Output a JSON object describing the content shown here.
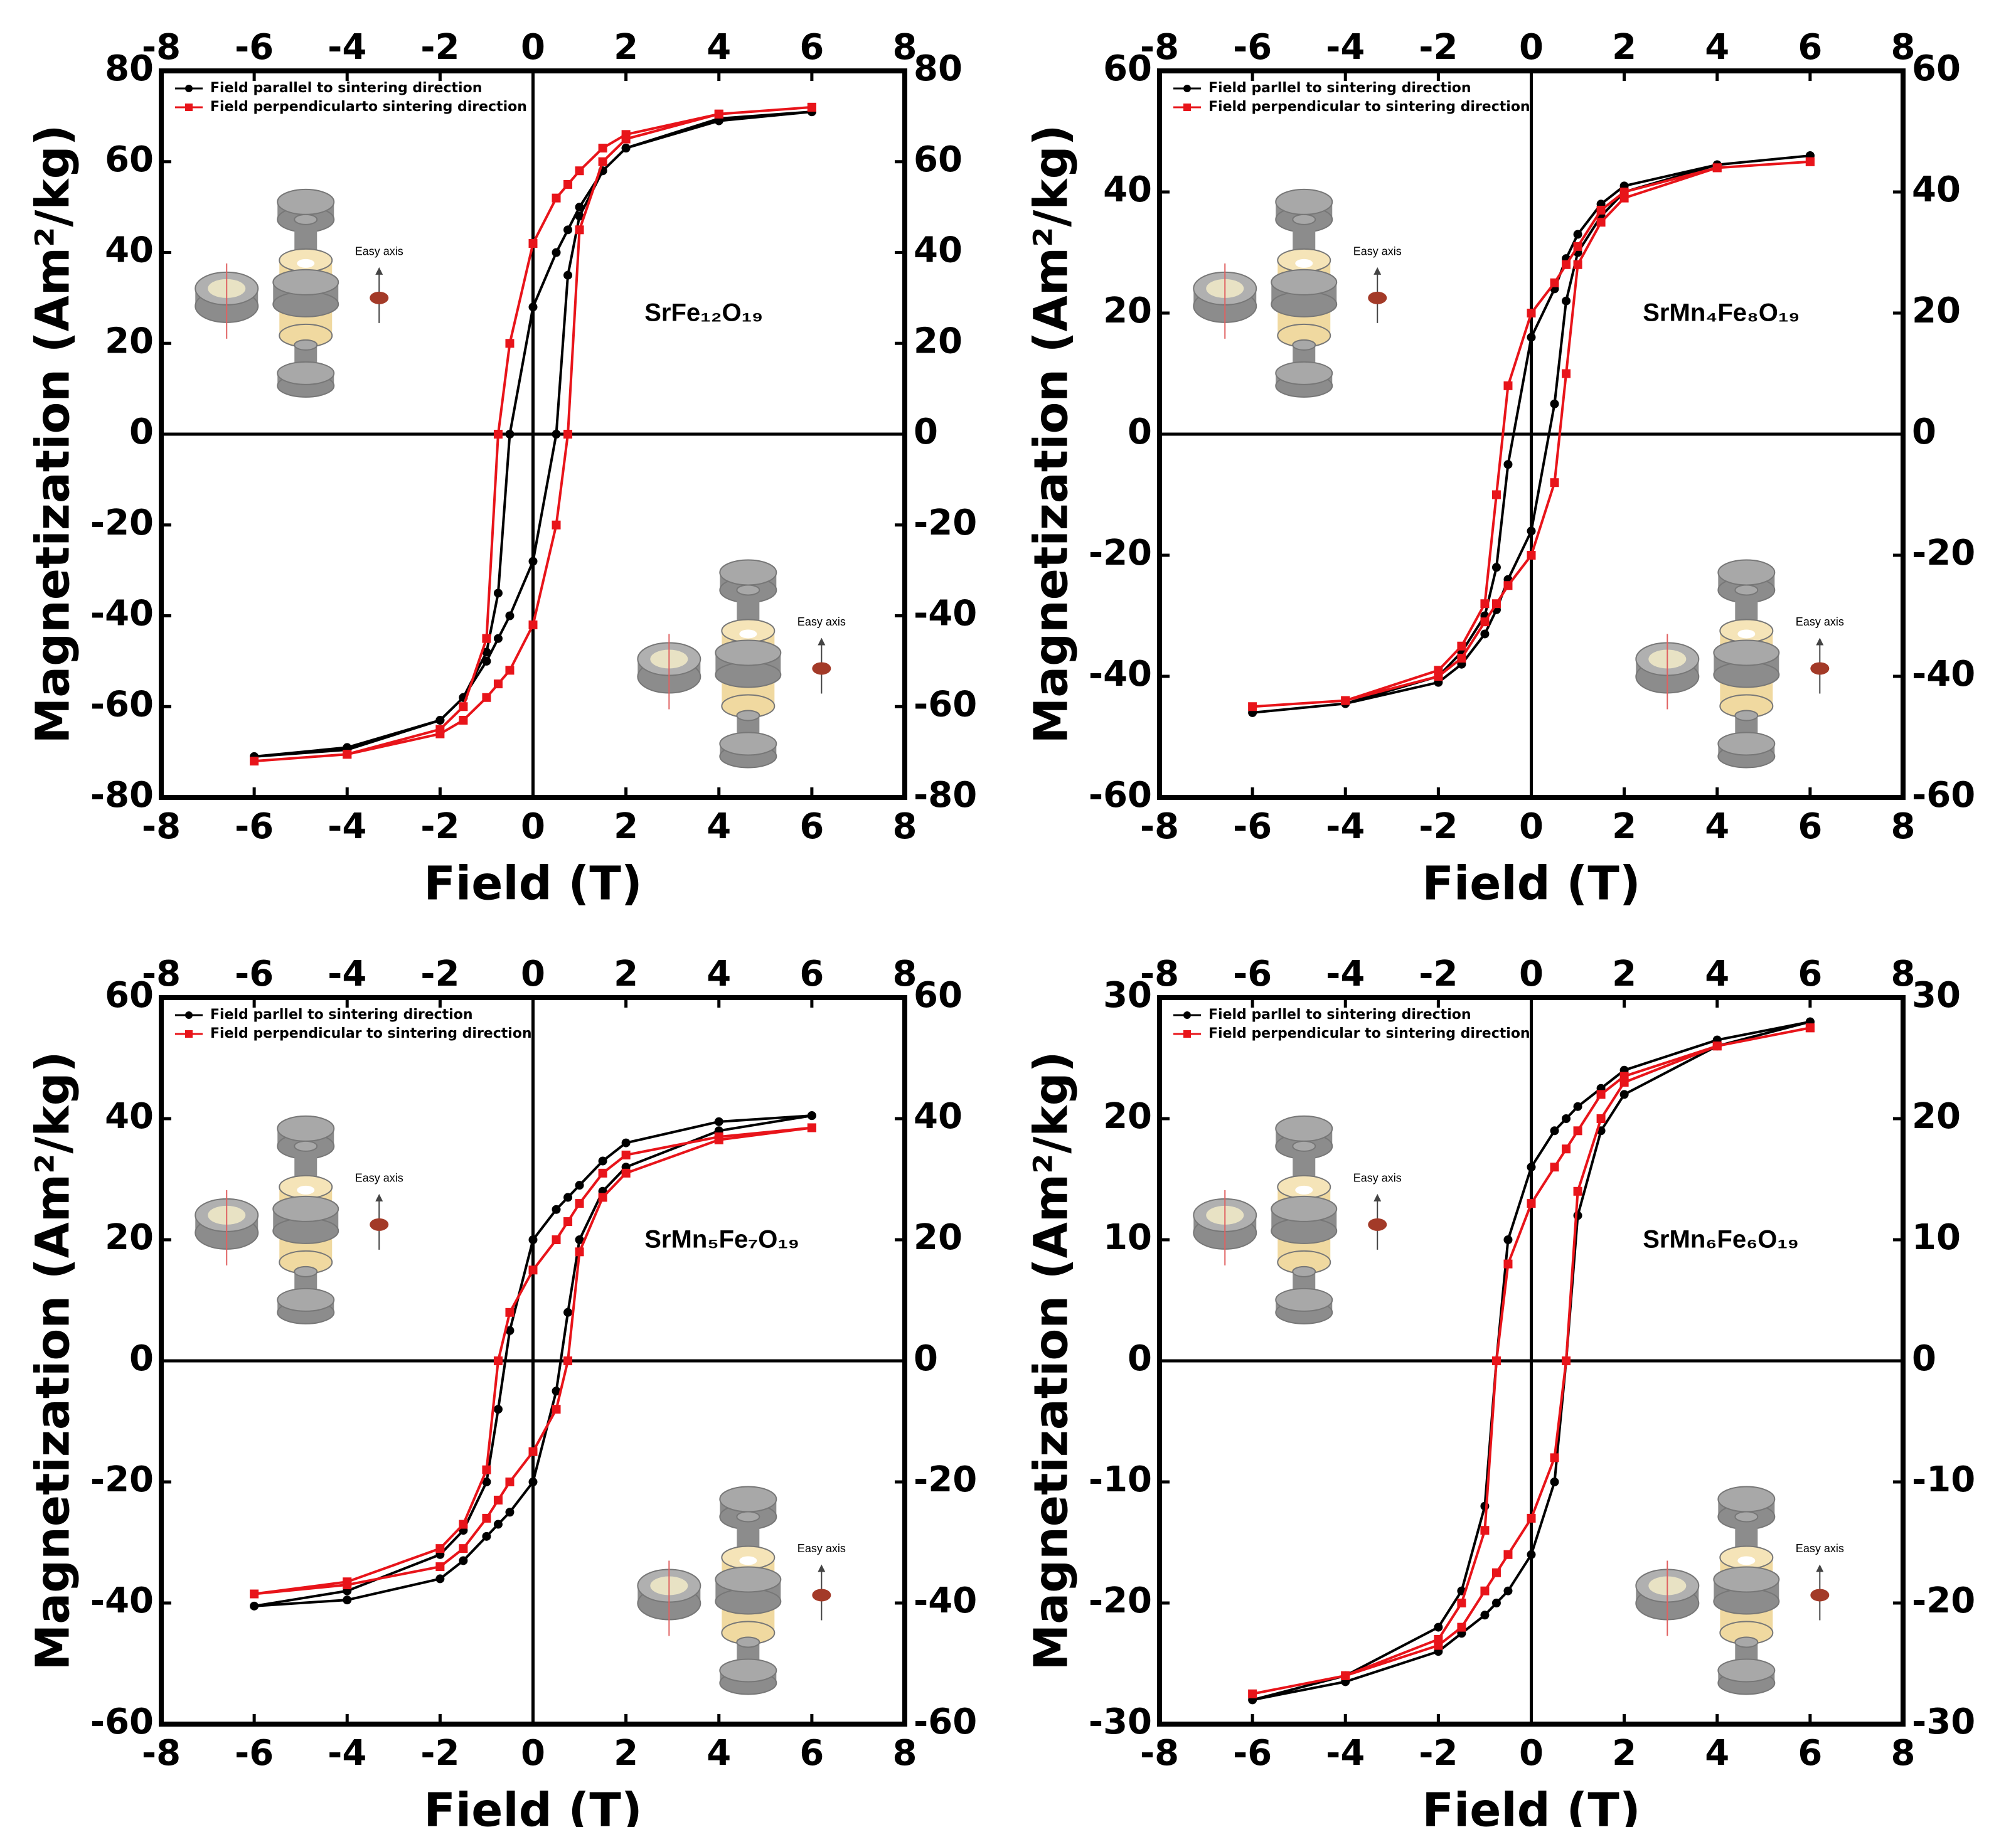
{
  "chart_data": [
    {
      "type": "line",
      "annotation": "SrFe₁₂O₁₉",
      "inset_label": "Easy axis",
      "xlabel": "Field (T)",
      "ylabel": "Magnetization (Am²/kg)",
      "xlim": [
        -8,
        8
      ],
      "xticks": [
        -8,
        -6,
        -4,
        -2,
        0,
        2,
        4,
        6,
        8
      ],
      "ylim": [
        -80,
        80
      ],
      "yticks": [
        -80,
        -60,
        -40,
        -20,
        0,
        20,
        40,
        60,
        80
      ],
      "x": [
        6,
        4,
        2,
        1.5,
        1,
        0.75,
        0.5,
        0,
        -0.5,
        -0.75,
        -1,
        -1.5,
        -2,
        -4,
        -6,
        -4,
        -2,
        -1.5,
        -1,
        -0.75,
        -0.5,
        0,
        0.5,
        0.75,
        1,
        1.5,
        2,
        4,
        6
      ],
      "series": [
        {
          "name": "Field parallel to sintering direction",
          "color": "#000000",
          "marker": "circle",
          "values": [
            71,
            69,
            63,
            58,
            50,
            45,
            40,
            28,
            0,
            -35,
            -48,
            -58,
            -63,
            -69.5,
            -71,
            -69,
            -63,
            -58,
            -50,
            -45,
            -40,
            -28,
            0,
            35,
            48,
            58,
            63,
            69.5,
            71
          ]
        },
        {
          "name": "Field perpendicularto sintering direction",
          "color": "#e8141a",
          "marker": "square",
          "values": [
            72,
            70.5,
            66,
            63,
            58,
            55,
            52,
            42,
            20,
            0,
            -45,
            -60,
            -65,
            -70.5,
            -72,
            -70.5,
            -66,
            -63,
            -58,
            -55,
            -52,
            -42,
            -20,
            0,
            45,
            60,
            65,
            70.5,
            72
          ]
        }
      ]
    },
    {
      "type": "line",
      "annotation": "SrMn₄Fe₈O₁₉",
      "inset_label": "Easy axis",
      "xlabel": "Field (T)",
      "ylabel": "Magnetization (Am²/kg)",
      "xlim": [
        -8,
        8
      ],
      "xticks": [
        -8,
        -6,
        -4,
        -2,
        0,
        2,
        4,
        6,
        8
      ],
      "ylim": [
        -60,
        60
      ],
      "yticks": [
        -60,
        -40,
        -20,
        0,
        20,
        40,
        60
      ],
      "x": [
        6,
        4,
        2,
        1.5,
        1,
        0.75,
        0.5,
        0,
        -0.5,
        -0.75,
        -1,
        -1.5,
        -2,
        -4,
        -6,
        -4,
        -2,
        -1.5,
        -1,
        -0.75,
        -0.5,
        0,
        0.5,
        0.75,
        1,
        1.5,
        2,
        4,
        6
      ],
      "series": [
        {
          "name": "Field parllel to sintering direction",
          "color": "#000000",
          "marker": "circle",
          "values": [
            46,
            44.5,
            41,
            38,
            33,
            29,
            24,
            16,
            -5,
            -22,
            -30,
            -36,
            -40,
            -44.5,
            -46,
            -44.5,
            -41,
            -38,
            -33,
            -29,
            -24,
            -16,
            5,
            22,
            30,
            36,
            40,
            44.5,
            46
          ]
        },
        {
          "name": "Field perpendicular to sintering direction",
          "color": "#e8141a",
          "marker": "square",
          "values": [
            45,
            44,
            40,
            37,
            31,
            28,
            25,
            20,
            8,
            -10,
            -28,
            -35,
            -39,
            -44,
            -45,
            -44,
            -40,
            -37,
            -31,
            -28,
            -25,
            -20,
            -8,
            10,
            28,
            35,
            39,
            44,
            45
          ]
        }
      ]
    },
    {
      "type": "line",
      "annotation": "SrMn₅Fe₇O₁₉",
      "inset_label": "Easy axis",
      "xlabel": "Field (T)",
      "ylabel": "Magnetization (Am²/kg)",
      "xlim": [
        -8,
        8
      ],
      "xticks": [
        -8,
        -6,
        -4,
        -2,
        0,
        2,
        4,
        6,
        8
      ],
      "ylim": [
        -60,
        60
      ],
      "yticks": [
        -60,
        -40,
        -20,
        0,
        20,
        40,
        60
      ],
      "x": [
        6,
        4,
        2,
        1.5,
        1,
        0.75,
        0.5,
        0,
        -0.5,
        -0.75,
        -1,
        -1.5,
        -2,
        -4,
        -6,
        -4,
        -2,
        -1.5,
        -1,
        -0.75,
        -0.5,
        0,
        0.5,
        0.75,
        1,
        1.5,
        2,
        4,
        6
      ],
      "series": [
        {
          "name": "Field parllel to sintering direction",
          "color": "#000000",
          "marker": "circle",
          "values": [
            40.5,
            39.5,
            36,
            33,
            29,
            27,
            25,
            20,
            5,
            -8,
            -20,
            -28,
            -32,
            -38,
            -40.5,
            -39.5,
            -36,
            -33,
            -29,
            -27,
            -25,
            -20,
            -5,
            8,
            20,
            28,
            32,
            38,
            40.5
          ]
        },
        {
          "name": "Field perpendicular to sintering direction",
          "color": "#e8141a",
          "marker": "square",
          "values": [
            38.5,
            37,
            34,
            31,
            26,
            23,
            20,
            15,
            8,
            0,
            -18,
            -27,
            -31,
            -36.5,
            -38.5,
            -37,
            -34,
            -31,
            -26,
            -23,
            -20,
            -15,
            -8,
            0,
            18,
            27,
            31,
            36.5,
            38.5
          ]
        }
      ]
    },
    {
      "type": "line",
      "annotation": "SrMn₆Fe₆O₁₉",
      "inset_label": "Easy axis",
      "xlabel": "Field (T)",
      "ylabel": "Magnetization (Am²/kg)",
      "xlim": [
        -8,
        8
      ],
      "xticks": [
        -8,
        -6,
        -4,
        -2,
        0,
        2,
        4,
        6,
        8
      ],
      "ylim": [
        -30,
        30
      ],
      "yticks": [
        -30,
        -20,
        -10,
        0,
        10,
        20,
        30
      ],
      "x": [
        6,
        4,
        2,
        1.5,
        1,
        0.75,
        0.5,
        0,
        -0.5,
        -0.75,
        -1,
        -1.5,
        -2,
        -4,
        -6,
        -4,
        -2,
        -1.5,
        -1,
        -0.75,
        -0.5,
        0,
        0.5,
        0.75,
        1,
        1.5,
        2,
        4,
        6
      ],
      "series": [
        {
          "name": "Field parllel to sintering direction",
          "color": "#000000",
          "marker": "circle",
          "values": [
            28,
            26.5,
            24,
            22.5,
            21,
            20,
            19,
            16,
            10,
            0,
            -12,
            -19,
            -22,
            -26,
            -28,
            -26.5,
            -24,
            -22.5,
            -21,
            -20,
            -19,
            -16,
            -10,
            0,
            12,
            19,
            22,
            26,
            28
          ]
        },
        {
          "name": "Field perpendicular to sintering direction",
          "color": "#e8141a",
          "marker": "square",
          "values": [
            27.5,
            26,
            23.5,
            22,
            19,
            17.5,
            16,
            13,
            8,
            0,
            -14,
            -20,
            -23,
            -26,
            -27.5,
            -26,
            -23.5,
            -22,
            -19,
            -17.5,
            -16,
            -13,
            -8,
            0,
            14,
            20,
            23,
            26,
            27.5
          ]
        }
      ]
    }
  ]
}
